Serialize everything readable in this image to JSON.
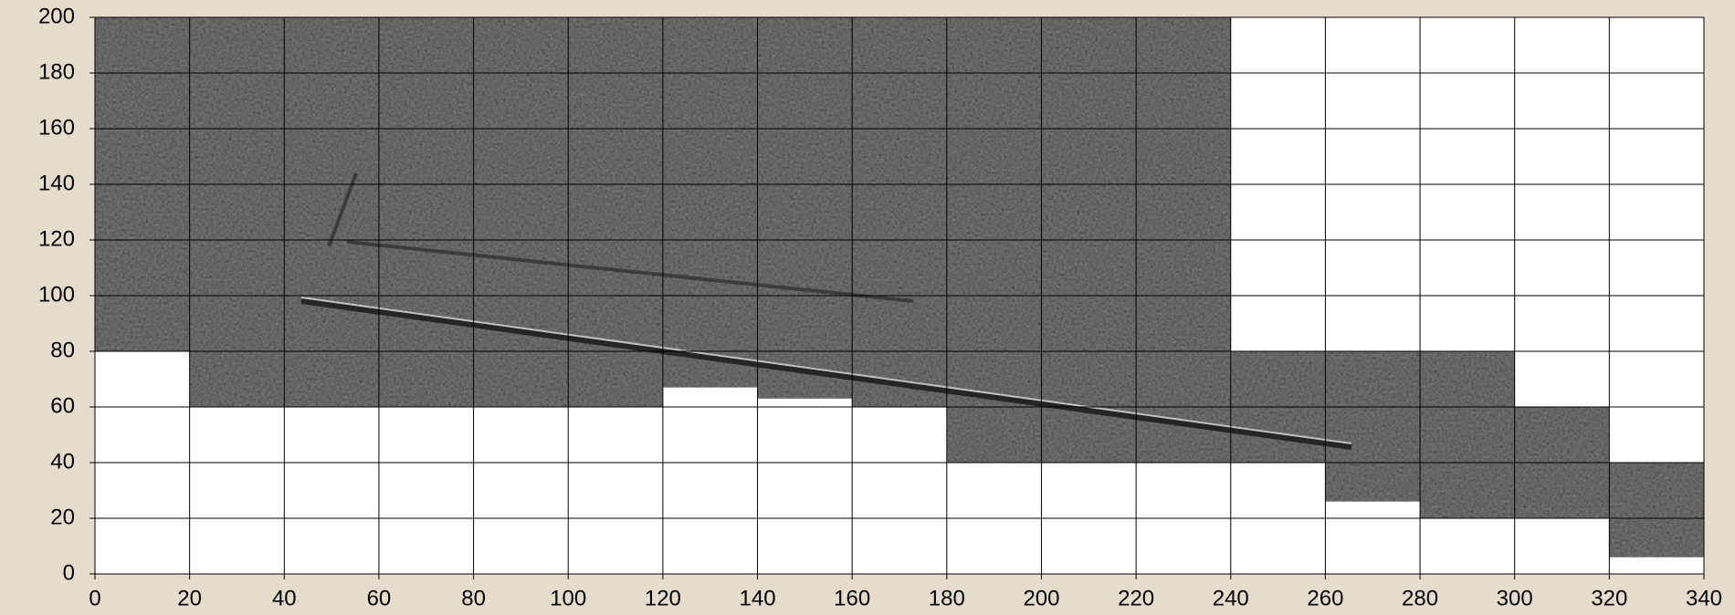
{
  "chart_data": {
    "type": "coverage",
    "xlim": [
      0,
      340
    ],
    "ylim": [
      0,
      200
    ],
    "xticks": [
      0,
      20,
      40,
      60,
      80,
      100,
      120,
      140,
      160,
      180,
      200,
      220,
      240,
      260,
      280,
      300,
      320,
      340
    ],
    "yticks": [
      0,
      20,
      40,
      60,
      80,
      100,
      120,
      140,
      160,
      180,
      200
    ],
    "grid": true,
    "color": "#8c8c8c",
    "blocks": [
      {
        "x": [
          0,
          20
        ],
        "y": [
          80,
          200
        ]
      },
      {
        "x": [
          20,
          120
        ],
        "y": [
          60,
          200
        ]
      },
      {
        "x": [
          120,
          140
        ],
        "y": [
          67,
          200
        ]
      },
      {
        "x": [
          140,
          160
        ],
        "y": [
          63,
          200
        ]
      },
      {
        "x": [
          160,
          180
        ],
        "y": [
          60,
          200
        ]
      },
      {
        "x": [
          180,
          240
        ],
        "y": [
          40,
          200
        ]
      },
      {
        "x": [
          240,
          260
        ],
        "y": [
          40,
          80
        ]
      },
      {
        "x": [
          260,
          280
        ],
        "y": [
          26,
          80
        ]
      },
      {
        "x": [
          280,
          300
        ],
        "y": [
          20,
          80
        ]
      },
      {
        "x": [
          300,
          320
        ],
        "y": [
          20,
          60
        ]
      },
      {
        "x": [
          320,
          340
        ],
        "y": [
          6,
          40
        ]
      }
    ]
  }
}
